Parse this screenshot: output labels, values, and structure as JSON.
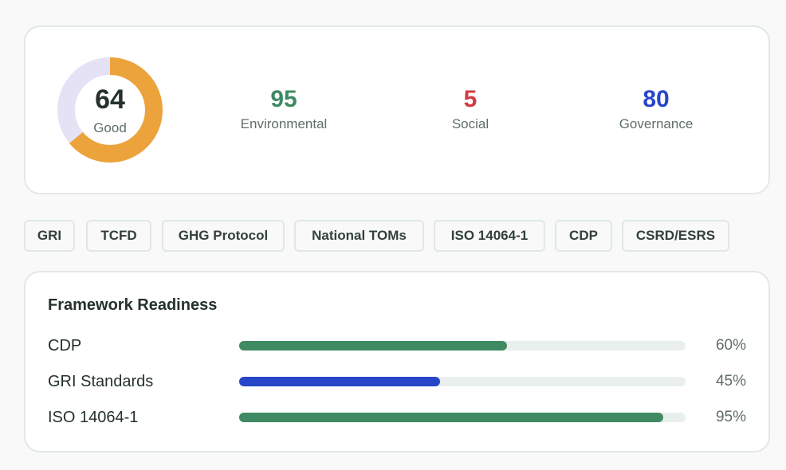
{
  "score": {
    "value": "64",
    "fraction": 0.64,
    "label": "Good",
    "ring_color": "#eda33b",
    "track_color": "#e6e2f6"
  },
  "metrics": [
    {
      "value": "95",
      "label": "Environmental",
      "color": "#3f8a63"
    },
    {
      "value": "5",
      "label": "Social",
      "color": "#d23a44"
    },
    {
      "value": "80",
      "label": "Governance",
      "color": "#2846c8"
    }
  ],
  "tags": [
    "GRI",
    "TCFD",
    "GHG Protocol",
    "National TOMs",
    "ISO 14064-1",
    "CDP",
    "CSRD/ESRS"
  ],
  "readiness": {
    "title": "Framework Readiness",
    "rows": [
      {
        "label": "CDP",
        "percent_text": "60%",
        "fraction": 0.6,
        "color": "#3f8a63"
      },
      {
        "label": "GRI Standards",
        "percent_text": "45%",
        "fraction": 0.45,
        "color": "#2846c8"
      },
      {
        "label": "ISO 14064-1",
        "percent_text": "95%",
        "fraction": 0.95,
        "color": "#3f8a63"
      }
    ]
  }
}
